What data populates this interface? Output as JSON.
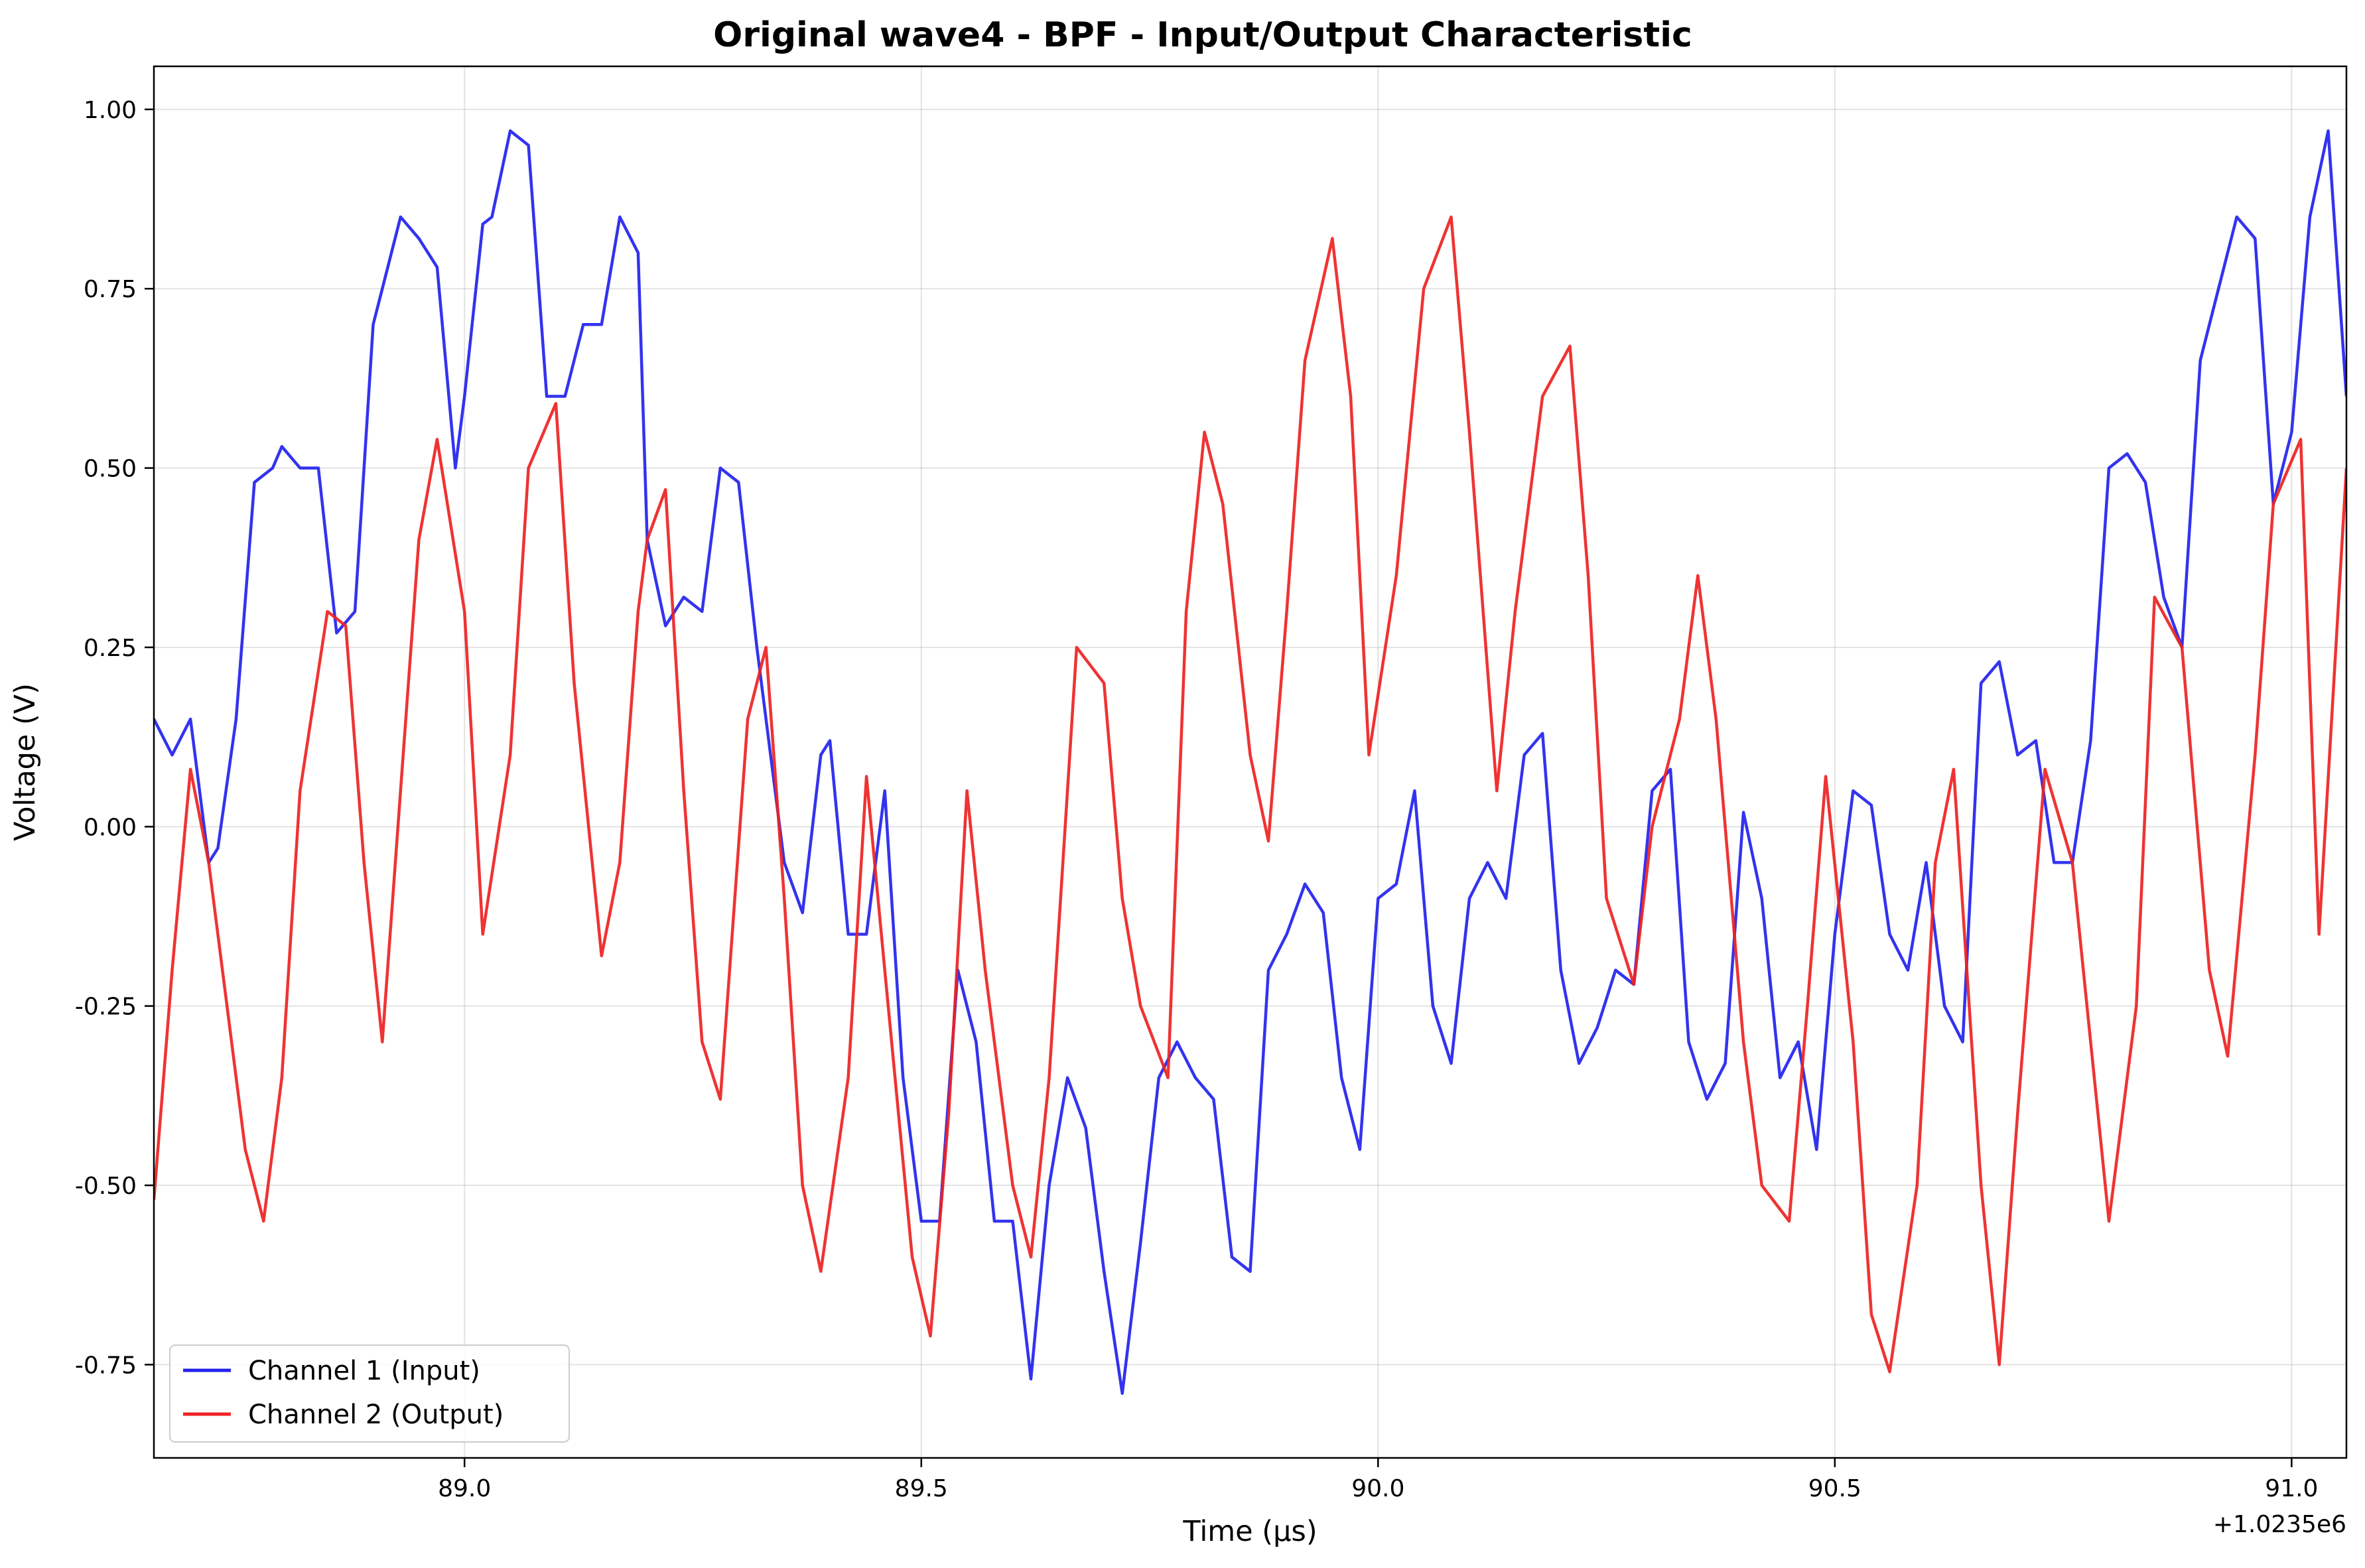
{
  "chart_data": {
    "type": "line",
    "title": "Original wave4 - BPF - Input/Output Characteristic",
    "xlabel": "Time (µs)",
    "ylabel": "Voltage (V)",
    "x_offset_label": "+1.0235e6",
    "xlim": [
      88.66,
      91.06
    ],
    "ylim": [
      -0.88,
      1.06
    ],
    "xticks": [
      89.0,
      89.5,
      90.0,
      90.5,
      91.0
    ],
    "xtick_labels": [
      "89.0",
      "89.5",
      "90.0",
      "90.5",
      "91.0"
    ],
    "yticks": [
      1.0,
      0.75,
      0.5,
      0.25,
      0.0,
      -0.25,
      -0.5,
      -0.75
    ],
    "ytick_labels": [
      "1.00",
      "0.75",
      "0.50",
      "0.25",
      "0.00",
      "-0.25",
      "-0.50",
      "-0.75"
    ],
    "grid": true,
    "legend_position": "lower-left",
    "series": [
      {
        "name": "Channel 1 (Input)",
        "color": "#2222ee",
        "x": [
          88.66,
          88.68,
          88.7,
          88.72,
          88.73,
          88.75,
          88.77,
          88.79,
          88.8,
          88.82,
          88.84,
          88.86,
          88.88,
          88.9,
          88.91,
          88.93,
          88.95,
          88.97,
          88.99,
          89.0,
          89.02,
          89.03,
          89.05,
          89.07,
          89.09,
          89.11,
          89.13,
          89.15,
          89.17,
          89.19,
          89.2,
          89.22,
          89.24,
          89.26,
          89.28,
          89.3,
          89.32,
          89.35,
          89.37,
          89.39,
          89.4,
          89.42,
          89.44,
          89.46,
          89.48,
          89.5,
          89.52,
          89.54,
          89.56,
          89.58,
          89.6,
          89.62,
          89.64,
          89.66,
          89.68,
          89.7,
          89.72,
          89.74,
          89.76,
          89.78,
          89.8,
          89.82,
          89.84,
          89.86,
          89.88,
          89.9,
          89.92,
          89.94,
          89.96,
          89.98,
          90.0,
          90.02,
          90.04,
          90.06,
          90.08,
          90.1,
          90.12,
          90.14,
          90.16,
          90.18,
          90.2,
          90.22,
          90.24,
          90.26,
          90.28,
          90.3,
          90.32,
          90.34,
          90.36,
          90.38,
          90.4,
          90.42,
          90.44,
          90.46,
          90.48,
          90.5,
          90.52,
          90.54,
          90.56,
          90.58,
          90.6,
          90.62,
          90.64,
          90.66,
          90.68,
          90.7,
          90.72,
          90.74,
          90.76,
          90.78,
          90.8,
          90.82,
          90.84,
          90.86,
          90.88,
          90.9,
          90.92,
          90.94,
          90.96,
          90.98,
          91.0,
          91.02,
          91.04,
          91.06
        ],
        "y": [
          0.15,
          0.1,
          0.15,
          -0.05,
          -0.03,
          0.15,
          0.48,
          0.5,
          0.53,
          0.5,
          0.5,
          0.27,
          0.3,
          0.7,
          0.75,
          0.85,
          0.82,
          0.78,
          0.5,
          0.6,
          0.84,
          0.85,
          0.97,
          0.95,
          0.6,
          0.6,
          0.7,
          0.7,
          0.85,
          0.8,
          0.4,
          0.28,
          0.32,
          0.3,
          0.5,
          0.48,
          0.25,
          -0.05,
          -0.12,
          0.1,
          0.12,
          -0.15,
          -0.15,
          0.05,
          -0.35,
          -0.55,
          -0.55,
          -0.2,
          -0.3,
          -0.55,
          -0.55,
          -0.77,
          -0.5,
          -0.35,
          -0.42,
          -0.62,
          -0.79,
          -0.58,
          -0.35,
          -0.3,
          -0.35,
          -0.38,
          -0.6,
          -0.62,
          -0.2,
          -0.15,
          -0.08,
          -0.12,
          -0.35,
          -0.45,
          -0.1,
          -0.08,
          0.05,
          -0.25,
          -0.33,
          -0.1,
          -0.05,
          -0.1,
          0.1,
          0.13,
          -0.2,
          -0.33,
          -0.28,
          -0.2,
          -0.22,
          0.05,
          0.08,
          -0.3,
          -0.38,
          -0.33,
          0.02,
          -0.1,
          -0.35,
          -0.3,
          -0.45,
          -0.15,
          0.05,
          0.03,
          -0.15,
          -0.2,
          -0.05,
          -0.25,
          -0.3,
          0.2,
          0.23,
          0.1,
          0.12,
          -0.05,
          -0.05,
          0.12,
          0.5,
          0.52,
          0.48,
          0.32,
          0.25,
          0.65,
          0.75,
          0.85,
          0.82,
          0.45,
          0.55,
          0.85,
          0.97,
          0.6
        ]
      },
      {
        "name": "Channel 2 (Output)",
        "color": "#ee2222",
        "x": [
          88.66,
          88.68,
          88.7,
          88.72,
          88.74,
          88.76,
          88.78,
          88.8,
          88.82,
          88.85,
          88.87,
          88.89,
          88.91,
          88.93,
          88.95,
          88.97,
          89.0,
          89.02,
          89.05,
          89.07,
          89.1,
          89.12,
          89.15,
          89.17,
          89.19,
          89.2,
          89.22,
          89.24,
          89.26,
          89.28,
          89.31,
          89.33,
          89.35,
          89.37,
          89.39,
          89.42,
          89.44,
          89.46,
          89.49,
          89.51,
          89.53,
          89.55,
          89.57,
          89.6,
          89.62,
          89.64,
          89.67,
          89.7,
          89.72,
          89.74,
          89.77,
          89.79,
          89.81,
          89.83,
          89.86,
          89.88,
          89.9,
          89.92,
          89.95,
          89.97,
          89.99,
          90.02,
          90.05,
          90.08,
          90.1,
          90.13,
          90.15,
          90.18,
          90.21,
          90.23,
          90.25,
          90.28,
          90.3,
          90.33,
          90.35,
          90.37,
          90.4,
          90.42,
          90.45,
          90.47,
          90.49,
          90.52,
          90.54,
          90.56,
          90.59,
          90.61,
          90.63,
          90.66,
          90.68,
          90.7,
          90.73,
          90.76,
          90.78,
          90.8,
          90.83,
          90.85,
          90.88,
          90.91,
          90.93,
          90.96,
          90.98,
          91.01,
          91.03,
          91.06
        ],
        "y": [
          -0.52,
          -0.2,
          0.08,
          -0.05,
          -0.25,
          -0.45,
          -0.55,
          -0.35,
          0.05,
          0.3,
          0.28,
          -0.05,
          -0.3,
          0.05,
          0.4,
          0.54,
          0.3,
          -0.15,
          0.1,
          0.5,
          0.59,
          0.2,
          -0.18,
          -0.05,
          0.3,
          0.4,
          0.47,
          0.05,
          -0.3,
          -0.38,
          0.15,
          0.25,
          -0.1,
          -0.5,
          -0.62,
          -0.35,
          0.07,
          -0.2,
          -0.6,
          -0.71,
          -0.4,
          0.05,
          -0.2,
          -0.5,
          -0.6,
          -0.35,
          0.25,
          0.2,
          -0.1,
          -0.25,
          -0.35,
          0.3,
          0.55,
          0.45,
          0.1,
          -0.02,
          0.3,
          0.65,
          0.82,
          0.6,
          0.1,
          0.35,
          0.75,
          0.85,
          0.55,
          0.05,
          0.3,
          0.6,
          0.67,
          0.35,
          -0.1,
          -0.22,
          0.0,
          0.15,
          0.35,
          0.15,
          -0.3,
          -0.5,
          -0.55,
          -0.25,
          0.07,
          -0.3,
          -0.68,
          -0.76,
          -0.5,
          -0.05,
          0.08,
          -0.5,
          -0.75,
          -0.4,
          0.08,
          -0.05,
          -0.3,
          -0.55,
          -0.25,
          0.32,
          0.25,
          -0.2,
          -0.32,
          0.1,
          0.45,
          0.54,
          -0.15,
          0.5
        ]
      }
    ]
  }
}
